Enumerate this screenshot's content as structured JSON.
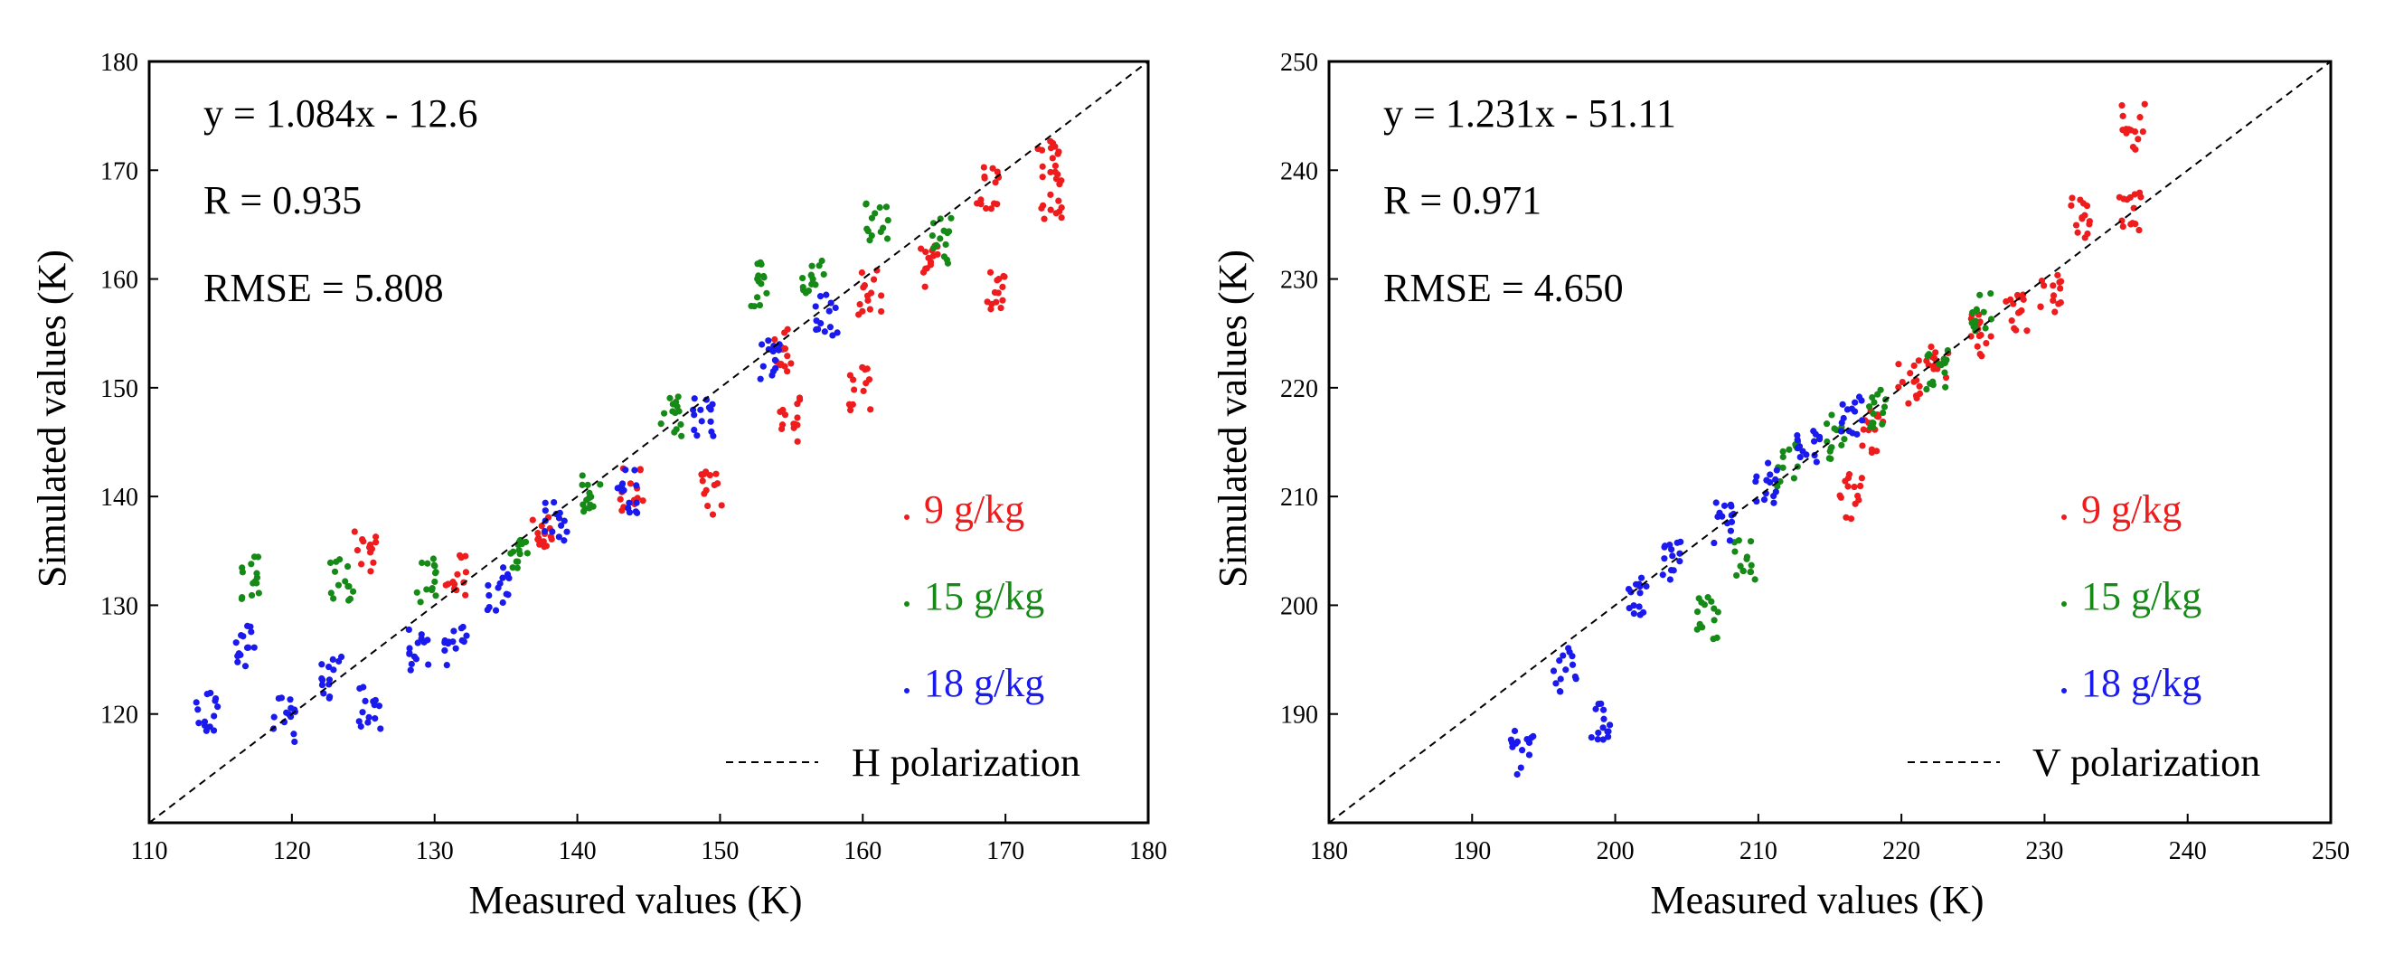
{
  "chart_data": [
    {
      "type": "scatter",
      "xlabel": "Measured values (K)",
      "ylabel": "Simulated values (K)",
      "xlim": [
        110,
        180
      ],
      "ylim": [
        110,
        180
      ],
      "xticks": [
        "110",
        "120",
        "130",
        "140",
        "150",
        "160",
        "170",
        "180"
      ],
      "yticks": [
        "120",
        "130",
        "140",
        "150",
        "160",
        "170",
        "180"
      ],
      "equation": "y = 1.084x - 12.6",
      "r": "R = 0.935",
      "rmse": "RMSE = 5.808",
      "reference_line": "H polarization",
      "legend_location": "lower-right",
      "series": [
        {
          "name": "9 g/kg",
          "color": "#ee1c1c",
          "clusters": [
            {
              "x": 125.2,
              "y": 135.0
            },
            {
              "x": 131.5,
              "y": 132.8
            },
            {
              "x": 137.5,
              "y": 136.5
            },
            {
              "x": 143.8,
              "y": 140.8
            },
            {
              "x": 149.5,
              "y": 140.3
            },
            {
              "x": 154.8,
              "y": 147.0
            },
            {
              "x": 154.3,
              "y": 153.5
            },
            {
              "x": 159.8,
              "y": 150.0
            },
            {
              "x": 160.5,
              "y": 158.8
            },
            {
              "x": 164.5,
              "y": 161.0
            },
            {
              "x": 169.2,
              "y": 159.0
            },
            {
              "x": 168.8,
              "y": 168.5
            },
            {
              "x": 173.0,
              "y": 171.5
            },
            {
              "x": 173.2,
              "y": 167.5
            }
          ]
        },
        {
          "name": "15 g/kg",
          "color": "#168a16",
          "clusters": [
            {
              "x": 117.2,
              "y": 132.5
            },
            {
              "x": 123.5,
              "y": 132.5
            },
            {
              "x": 129.5,
              "y": 132.3
            },
            {
              "x": 135.8,
              "y": 134.5
            },
            {
              "x": 141.0,
              "y": 140.5
            },
            {
              "x": 146.5,
              "y": 147.5
            },
            {
              "x": 152.5,
              "y": 159.5
            },
            {
              "x": 156.5,
              "y": 159.8
            },
            {
              "x": 161.0,
              "y": 165.5
            },
            {
              "x": 165.5,
              "y": 163.5
            }
          ]
        },
        {
          "name": "18 g/kg",
          "color": "#1a1aee",
          "clusters": [
            {
              "x": 114.0,
              "y": 120.5
            },
            {
              "x": 116.8,
              "y": 126.5
            },
            {
              "x": 119.5,
              "y": 119.5
            },
            {
              "x": 122.8,
              "y": 123.5
            },
            {
              "x": 125.5,
              "y": 120.5
            },
            {
              "x": 128.8,
              "y": 126.0
            },
            {
              "x": 131.5,
              "y": 126.5
            },
            {
              "x": 134.5,
              "y": 131.5
            },
            {
              "x": 138.5,
              "y": 138.0
            },
            {
              "x": 143.5,
              "y": 140.5
            },
            {
              "x": 148.8,
              "y": 147.5
            },
            {
              "x": 153.5,
              "y": 152.5
            },
            {
              "x": 157.5,
              "y": 156.5
            }
          ]
        }
      ]
    },
    {
      "type": "scatter",
      "xlabel": "Measured values (K)",
      "ylabel": "Simulated values (K)",
      "xlim": [
        180,
        250
      ],
      "ylim": [
        180,
        250
      ],
      "xticks": [
        "180",
        "190",
        "200",
        "210",
        "220",
        "230",
        "240",
        "250"
      ],
      "yticks": [
        "190",
        "200",
        "210",
        "220",
        "230",
        "240",
        "250"
      ],
      "equation": "y = 1.231x - 51.11",
      "r": "R = 0.971",
      "rmse": "RMSE = 4.650",
      "reference_line": "V polarization",
      "legend_location": "lower-right",
      "series": [
        {
          "name": "9 g/kg",
          "color": "#ee1c1c",
          "clusters": [
            {
              "x": 216.5,
              "y": 210.0
            },
            {
              "x": 218.0,
              "y": 216.0
            },
            {
              "x": 220.5,
              "y": 220.5
            },
            {
              "x": 222.5,
              "y": 222.5
            },
            {
              "x": 225.5,
              "y": 225.0
            },
            {
              "x": 228.0,
              "y": 226.5
            },
            {
              "x": 230.5,
              "y": 229.0
            },
            {
              "x": 232.5,
              "y": 235.5
            },
            {
              "x": 236.0,
              "y": 236.0
            },
            {
              "x": 236.2,
              "y": 244.0
            }
          ]
        },
        {
          "name": "15 g/kg",
          "color": "#168a16",
          "clusters": [
            {
              "x": 206.5,
              "y": 199.0
            },
            {
              "x": 209.0,
              "y": 204.0
            },
            {
              "x": 212.0,
              "y": 213.0
            },
            {
              "x": 215.5,
              "y": 215.5
            },
            {
              "x": 218.5,
              "y": 218.0
            },
            {
              "x": 222.5,
              "y": 221.5
            },
            {
              "x": 225.5,
              "y": 227.0
            }
          ]
        },
        {
          "name": "18 g/kg",
          "color": "#1a1aee",
          "clusters": [
            {
              "x": 193.5,
              "y": 186.5
            },
            {
              "x": 196.5,
              "y": 194.0
            },
            {
              "x": 199.0,
              "y": 189.0
            },
            {
              "x": 201.5,
              "y": 200.5
            },
            {
              "x": 204.0,
              "y": 204.0
            },
            {
              "x": 207.5,
              "y": 207.5
            },
            {
              "x": 210.5,
              "y": 211.5
            },
            {
              "x": 213.5,
              "y": 214.0
            },
            {
              "x": 216.5,
              "y": 217.5
            }
          ]
        }
      ]
    }
  ]
}
